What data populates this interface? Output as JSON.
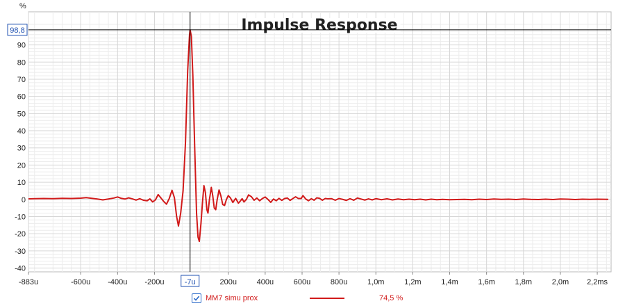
{
  "chart_data": {
    "type": "line",
    "title": "Impulse Response",
    "ylabel": "%",
    "ylim": [
      -41,
      104
    ],
    "xlim": [
      -883,
      2260
    ],
    "yticks": [
      -40,
      -30,
      -20,
      -10,
      0,
      10,
      20,
      30,
      40,
      50,
      60,
      70,
      80,
      90
    ],
    "xticks": [
      {
        "v": -883,
        "label": "-883u"
      },
      {
        "v": -600,
        "label": "-600u"
      },
      {
        "v": -400,
        "label": "-400u"
      },
      {
        "v": -200,
        "label": "-200u"
      },
      {
        "v": -7,
        "label": "-7u"
      },
      {
        "v": 200,
        "label": "200u"
      },
      {
        "v": 400,
        "label": "400u"
      },
      {
        "v": 600,
        "label": "600u"
      },
      {
        "v": 800,
        "label": "800u"
      },
      {
        "v": 1000,
        "label": "1,0m"
      },
      {
        "v": 1200,
        "label": "1,2m"
      },
      {
        "v": 1400,
        "label": "1,4m"
      },
      {
        "v": 1600,
        "label": "1,6m"
      },
      {
        "v": 1800,
        "label": "1,8m"
      },
      {
        "v": 2000,
        "label": "2,0m"
      },
      {
        "v": 2200,
        "label": "2,2ms"
      }
    ],
    "cursor": {
      "x": -7,
      "y": 98.8,
      "x_label": "-7u",
      "y_label": "98,8"
    },
    "grid": true,
    "legend_position": "bottom-center",
    "series": [
      {
        "name": "MM7 simu prox",
        "value_label": "74,5 %",
        "color": "#d11a1a",
        "checked": true,
        "points": [
          [
            -883,
            0.3
          ],
          [
            -850,
            0.4
          ],
          [
            -800,
            0.5
          ],
          [
            -750,
            0.4
          ],
          [
            -700,
            0.6
          ],
          [
            -650,
            0.5
          ],
          [
            -600,
            0.7
          ],
          [
            -570,
            1.0
          ],
          [
            -540,
            0.6
          ],
          [
            -510,
            0.2
          ],
          [
            -480,
            -0.3
          ],
          [
            -450,
            0.2
          ],
          [
            -420,
            0.8
          ],
          [
            -400,
            1.4
          ],
          [
            -380,
            0.6
          ],
          [
            -360,
            0.2
          ],
          [
            -340,
            0.9
          ],
          [
            -320,
            0.3
          ],
          [
            -300,
            -0.4
          ],
          [
            -280,
            0.4
          ],
          [
            -260,
            -0.5
          ],
          [
            -240,
            -0.8
          ],
          [
            -225,
            0.3
          ],
          [
            -210,
            -1.5
          ],
          [
            -195,
            -0.3
          ],
          [
            -180,
            2.8
          ],
          [
            -165,
            0.8
          ],
          [
            -150,
            -1.2
          ],
          [
            -135,
            -2.8
          ],
          [
            -120,
            0.5
          ],
          [
            -105,
            5.3
          ],
          [
            -92,
            1.0
          ],
          [
            -80,
            -10.0
          ],
          [
            -70,
            -15.5
          ],
          [
            -58,
            -8.0
          ],
          [
            -45,
            5.0
          ],
          [
            -32,
            33.0
          ],
          [
            -20,
            75.0
          ],
          [
            -10,
            96.0
          ],
          [
            -7,
            98.8
          ],
          [
            0,
            95.0
          ],
          [
            8,
            72.0
          ],
          [
            18,
            30.0
          ],
          [
            28,
            -8.0
          ],
          [
            36,
            -22.0
          ],
          [
            43,
            -24.5
          ],
          [
            52,
            -14.0
          ],
          [
            60,
            -2.0
          ],
          [
            68,
            8.0
          ],
          [
            76,
            4.0
          ],
          [
            84,
            -6.0
          ],
          [
            90,
            -8.0
          ],
          [
            98,
            0.0
          ],
          [
            108,
            7.0
          ],
          [
            116,
            2.0
          ],
          [
            124,
            -5.0
          ],
          [
            132,
            -6.0
          ],
          [
            140,
            0.0
          ],
          [
            150,
            5.5
          ],
          [
            160,
            2.0
          ],
          [
            170,
            -3.0
          ],
          [
            180,
            -3.5
          ],
          [
            190,
            0.0
          ],
          [
            200,
            2.2
          ],
          [
            212,
            0.8
          ],
          [
            225,
            -1.8
          ],
          [
            240,
            0.6
          ],
          [
            255,
            -2.2
          ],
          [
            265,
            -1.0
          ],
          [
            275,
            0.4
          ],
          [
            285,
            -1.5
          ],
          [
            298,
            0.0
          ],
          [
            310,
            2.6
          ],
          [
            325,
            1.6
          ],
          [
            340,
            -0.5
          ],
          [
            355,
            0.8
          ],
          [
            370,
            -0.8
          ],
          [
            385,
            0.5
          ],
          [
            400,
            1.4
          ],
          [
            415,
            0.0
          ],
          [
            430,
            -1.7
          ],
          [
            445,
            0.2
          ],
          [
            460,
            -0.8
          ],
          [
            475,
            0.6
          ],
          [
            490,
            -0.6
          ],
          [
            505,
            0.5
          ],
          [
            520,
            0.8
          ],
          [
            535,
            -0.6
          ],
          [
            550,
            0.5
          ],
          [
            565,
            1.5
          ],
          [
            580,
            0.5
          ],
          [
            595,
            0.5
          ],
          [
            605,
            2.2
          ],
          [
            620,
            0.2
          ],
          [
            635,
            -0.8
          ],
          [
            650,
            0.4
          ],
          [
            665,
            -0.5
          ],
          [
            680,
            0.9
          ],
          [
            695,
            0.6
          ],
          [
            710,
            -0.5
          ],
          [
            725,
            0.5
          ],
          [
            740,
            0.3
          ],
          [
            760,
            0.4
          ],
          [
            780,
            -0.5
          ],
          [
            800,
            0.5
          ],
          [
            820,
            0.0
          ],
          [
            840,
            -0.6
          ],
          [
            860,
            0.4
          ],
          [
            880,
            -0.5
          ],
          [
            900,
            0.8
          ],
          [
            920,
            0.2
          ],
          [
            940,
            -0.4
          ],
          [
            960,
            0.3
          ],
          [
            980,
            -0.3
          ],
          [
            1000,
            0.4
          ],
          [
            1030,
            -0.2
          ],
          [
            1060,
            0.3
          ],
          [
            1090,
            -0.3
          ],
          [
            1120,
            0.2
          ],
          [
            1150,
            -0.2
          ],
          [
            1180,
            0.1
          ],
          [
            1210,
            -0.2
          ],
          [
            1240,
            0.1
          ],
          [
            1270,
            -0.3
          ],
          [
            1300,
            0.1
          ],
          [
            1330,
            -0.2
          ],
          [
            1360,
            0.0
          ],
          [
            1400,
            -0.2
          ],
          [
            1440,
            -0.1
          ],
          [
            1480,
            0.0
          ],
          [
            1520,
            -0.2
          ],
          [
            1560,
            0.1
          ],
          [
            1600,
            -0.1
          ],
          [
            1640,
            0.2
          ],
          [
            1680,
            0.0
          ],
          [
            1720,
            0.1
          ],
          [
            1760,
            -0.1
          ],
          [
            1800,
            0.2
          ],
          [
            1840,
            0.0
          ],
          [
            1880,
            -0.1
          ],
          [
            1920,
            0.1
          ],
          [
            1960,
            -0.1
          ],
          [
            2000,
            0.2
          ],
          [
            2040,
            0.1
          ],
          [
            2080,
            -0.1
          ],
          [
            2120,
            0.1
          ],
          [
            2160,
            0.0
          ],
          [
            2200,
            0.1
          ],
          [
            2260,
            0.0
          ]
        ]
      }
    ]
  }
}
